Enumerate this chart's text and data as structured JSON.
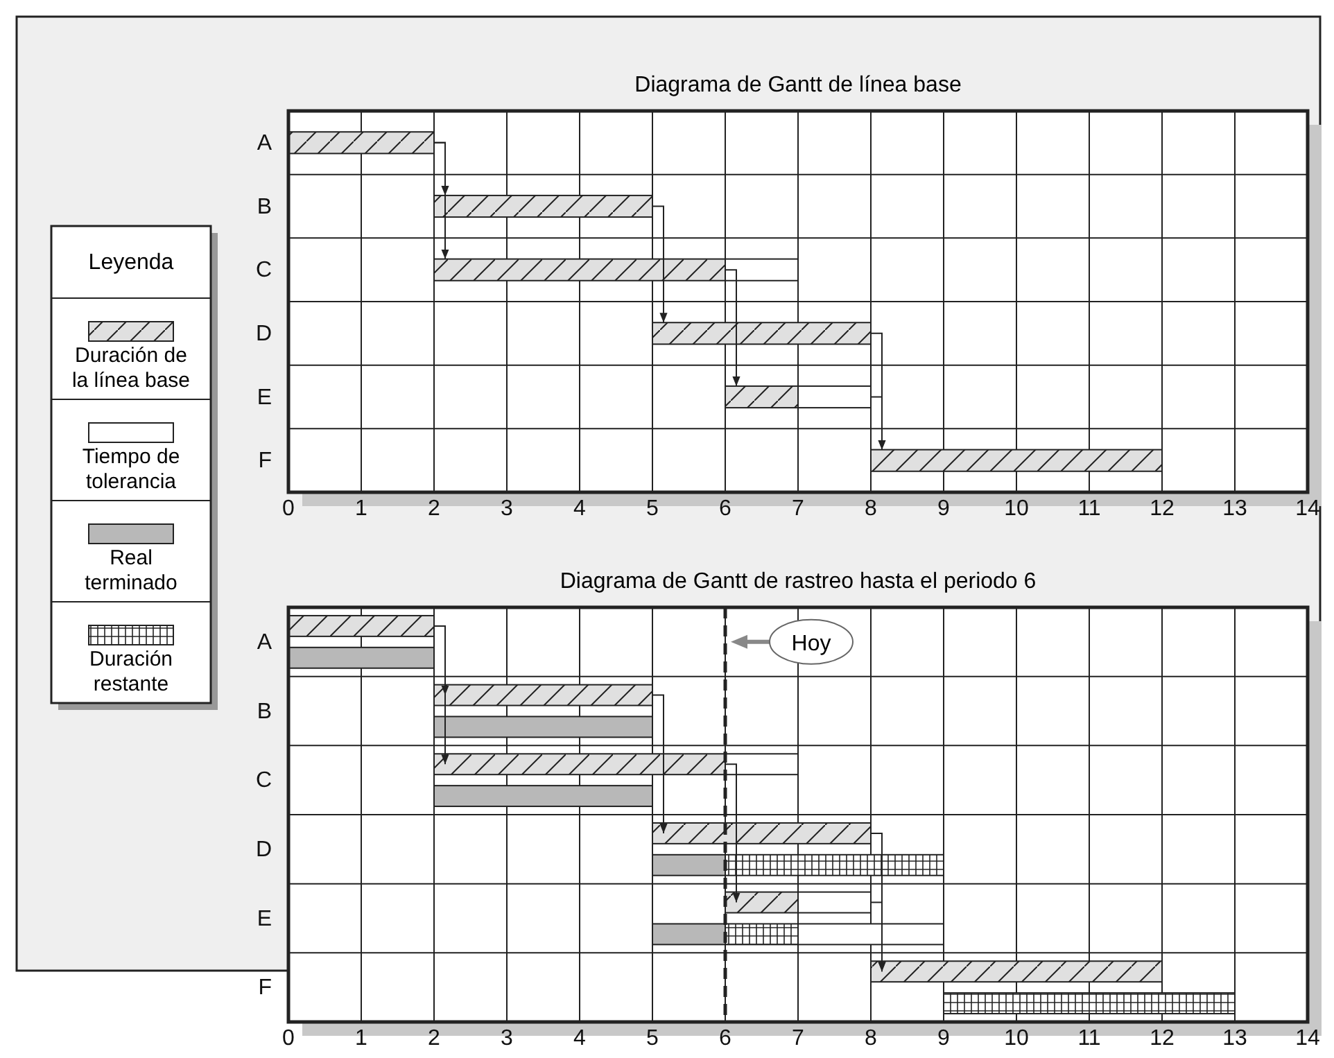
{
  "chart_data": [
    {
      "type": "bar",
      "orientation": "horizontal",
      "title": "Diagrama de Gantt de línea base",
      "categories": [
        "A",
        "B",
        "C",
        "D",
        "E",
        "F"
      ],
      "xlim": [
        0,
        14
      ],
      "xticks": [
        0,
        1,
        2,
        3,
        4,
        5,
        6,
        7,
        8,
        9,
        10,
        11,
        12,
        13,
        14
      ],
      "grid": true,
      "legend": false,
      "series": [
        {
          "color": "#e0e0e0",
          "base": [
            0,
            2,
            2,
            5,
            6,
            8
          ],
          "values": [
            2,
            3,
            4,
            3,
            1,
            4
          ]
        },
        {
          "color": "#ffffff",
          "base": [
            null,
            null,
            6,
            null,
            7,
            null
          ],
          "values": [
            null,
            null,
            1,
            null,
            1,
            null
          ]
        }
      ]
    },
    {
      "type": "bar",
      "orientation": "horizontal",
      "title": "Diagrama de Gantt de rastreo hasta el periodo 6",
      "categories": [
        "A",
        "B",
        "C",
        "D",
        "E",
        "F"
      ],
      "xlim": [
        0,
        14
      ],
      "xticks": [
        0,
        1,
        2,
        3,
        4,
        5,
        6,
        7,
        8,
        9,
        10,
        11,
        12,
        13,
        14
      ],
      "grid": true,
      "legend": "left",
      "legend_title": "Leyenda",
      "ref_lines": [
        {
          "axis": "x",
          "value": 6,
          "label": "Hoy",
          "line_style": "dashed"
        }
      ],
      "series": [
        {
          "name": "Duración de la línea base",
          "color": "#e0e0e0",
          "base": [
            0,
            2,
            2,
            5,
            6,
            8
          ],
          "values": [
            2,
            3,
            4,
            3,
            1,
            4
          ]
        },
        {
          "name": "Tiempo de tolerancia",
          "color": "#ffffff",
          "base": [
            null,
            null,
            6,
            null,
            7,
            null
          ],
          "values": [
            null,
            null,
            1,
            null,
            1,
            null
          ]
        },
        {
          "name": "Real terminado",
          "color": "#b8b8b8",
          "base": [
            0,
            2,
            2,
            5,
            5,
            null
          ],
          "values": [
            2,
            3,
            3,
            1,
            1,
            null
          ]
        },
        {
          "name": "Duración restante",
          "color": "#ffffff",
          "base": [
            null,
            null,
            null,
            6,
            6,
            9
          ],
          "values": [
            null,
            null,
            null,
            3,
            1,
            4
          ]
        },
        {
          "color": "#ffffff",
          "base": [
            null,
            null,
            null,
            null,
            7,
            null
          ],
          "values": [
            null,
            null,
            null,
            null,
            2,
            null
          ]
        }
      ]
    }
  ]
}
